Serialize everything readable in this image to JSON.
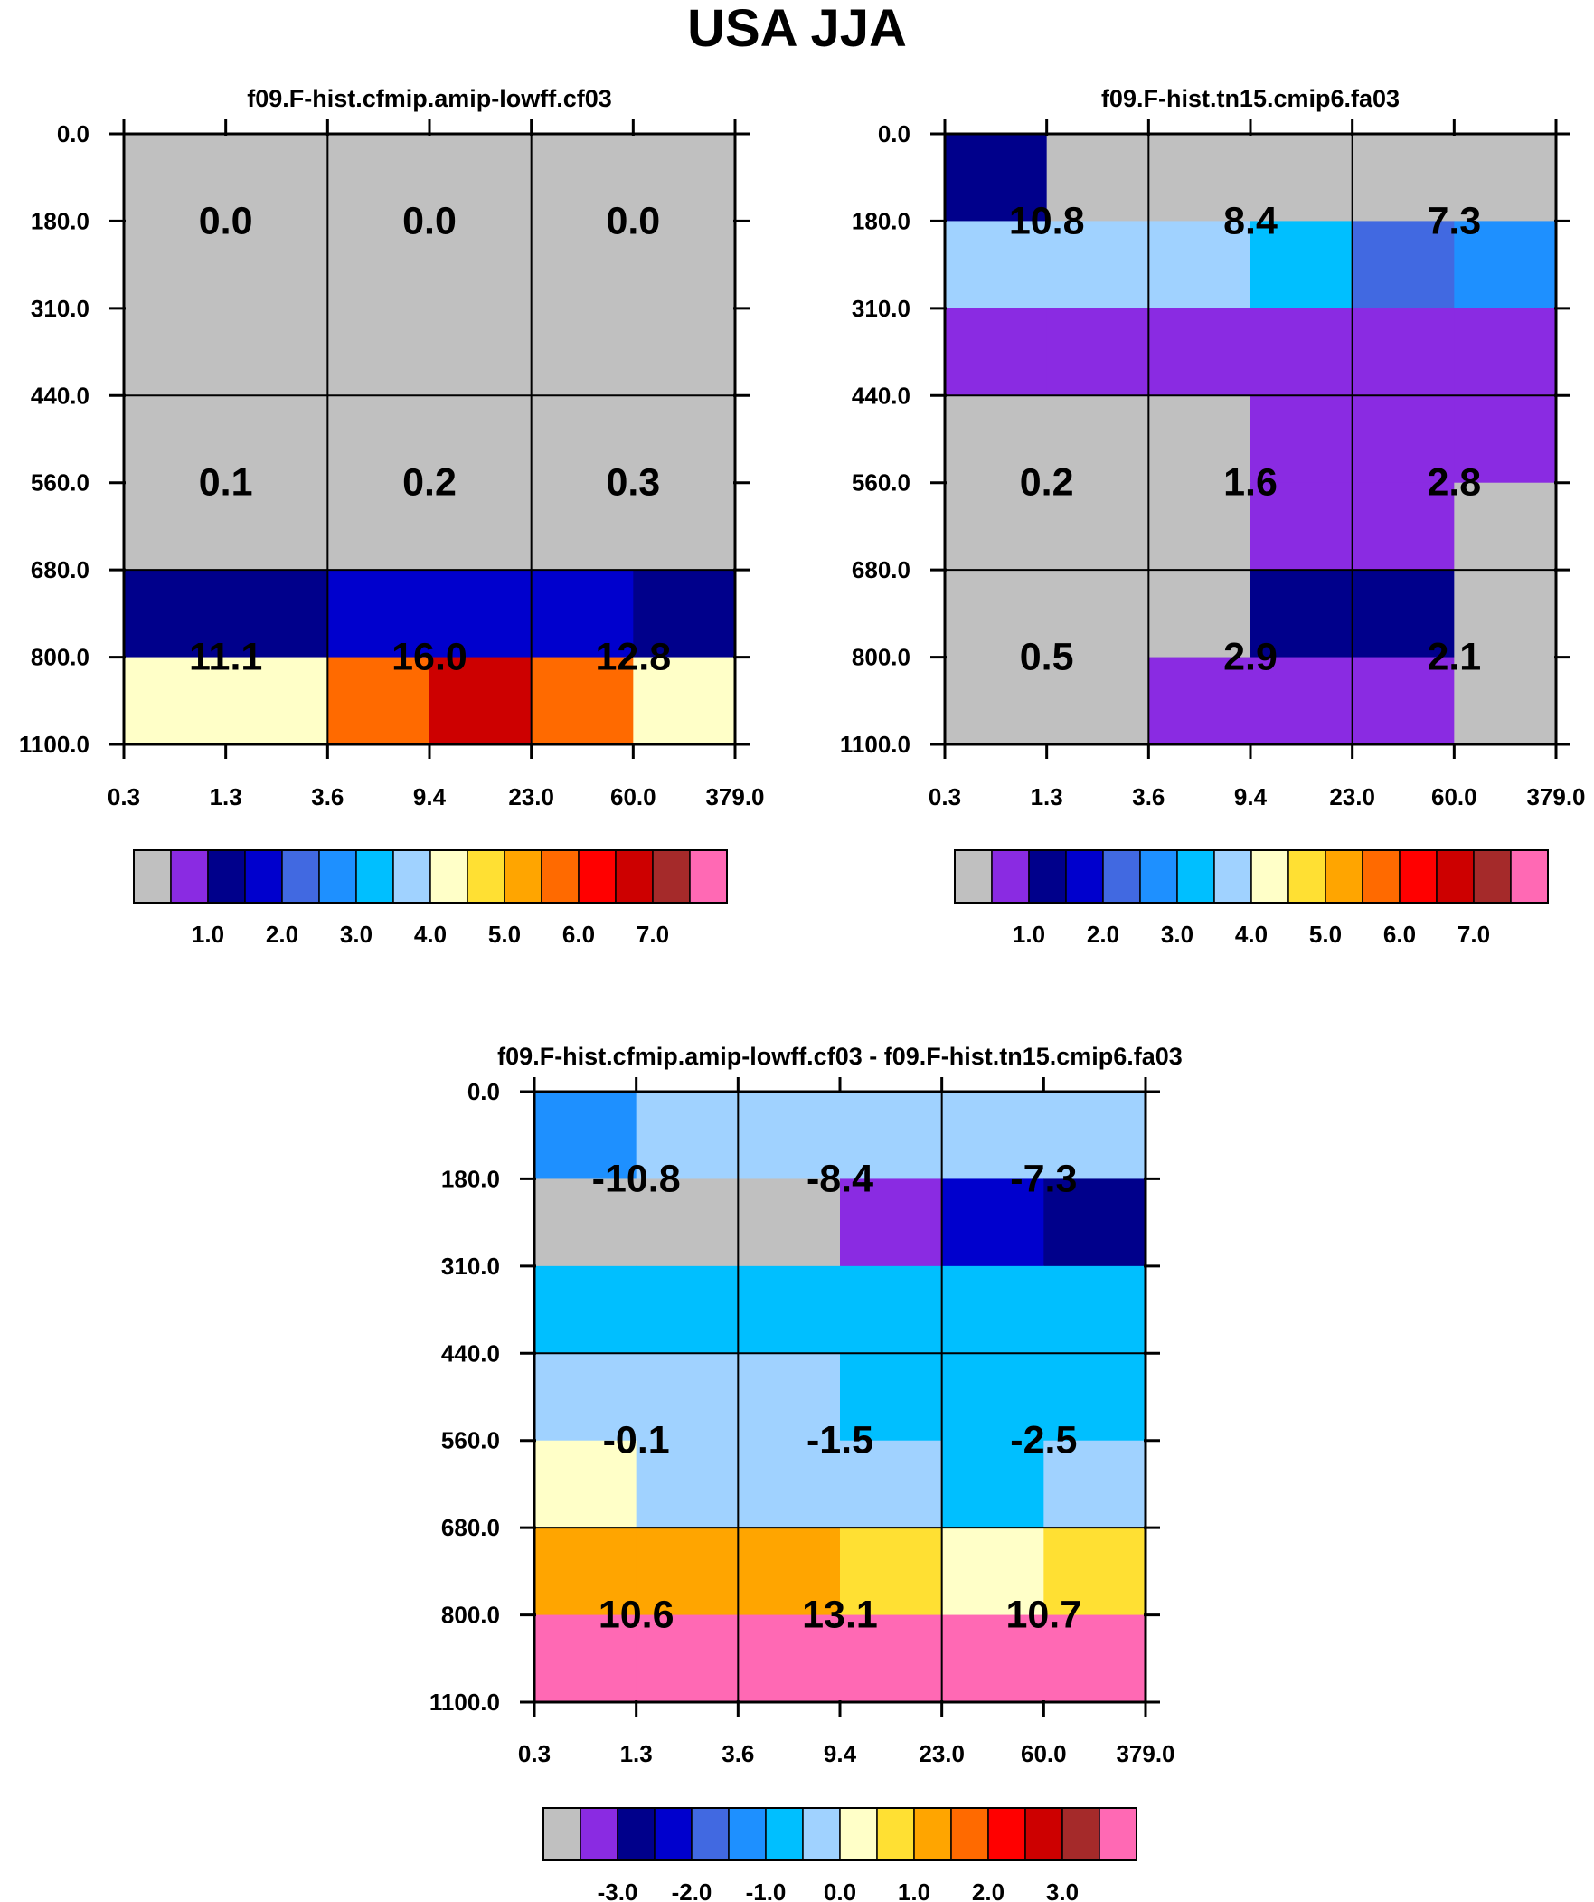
{
  "title": "USA JJA",
  "colors": {
    "c0": "#c0c0c0",
    "c1": "#8a2be2",
    "c2": "#00008b",
    "c3": "#0000cd",
    "c4": "#4169e1",
    "c5": "#1e90ff",
    "c6": "#00bfff",
    "c7": "#a0d2ff",
    "c8": "#ffffc8",
    "c9": "#ffe033",
    "c10": "#ffa500",
    "c11": "#ff6a00",
    "c12": "#ff0000",
    "c13": "#cd0000",
    "c14": "#a52a2a",
    "c15": "#ff69b4"
  },
  "chart_data": [
    {
      "type": "heatmap",
      "title": "f09.F-hist.cfmip.amip-lowff.cf03",
      "x_ticks": [
        "0.3",
        "1.3",
        "3.6",
        "9.4",
        "23.0",
        "60.0",
        "379.0"
      ],
      "y_ticks": [
        "0.0",
        "180.0",
        "310.0",
        "440.0",
        "560.0",
        "680.0",
        "800.0",
        "1100.0"
      ],
      "cells": [
        [
          "c0",
          "c0",
          "c0",
          "c0",
          "c0",
          "c0"
        ],
        [
          "c0",
          "c0",
          "c0",
          "c0",
          "c0",
          "c0"
        ],
        [
          "c0",
          "c0",
          "c0",
          "c0",
          "c0",
          "c0"
        ],
        [
          "c0",
          "c0",
          "c0",
          "c0",
          "c0",
          "c0"
        ],
        [
          "c0",
          "c0",
          "c0",
          "c0",
          "c0",
          "c0"
        ],
        [
          "c2",
          "c2",
          "c3",
          "c3",
          "c3",
          "c2"
        ],
        [
          "c8",
          "c8",
          "c11",
          "c13",
          "c11",
          "c8"
        ]
      ],
      "annotations": [
        {
          "row": 1,
          "col": 0,
          "text": "0.0"
        },
        {
          "row": 1,
          "col": 1,
          "text": "0.0"
        },
        {
          "row": 1,
          "col": 2,
          "text": "0.0"
        },
        {
          "row": 4,
          "col": 0,
          "text": "0.1"
        },
        {
          "row": 4,
          "col": 1,
          "text": "0.2"
        },
        {
          "row": 4,
          "col": 2,
          "text": "0.3"
        },
        {
          "row": 6,
          "col": 0,
          "text": "11.1"
        },
        {
          "row": 6,
          "col": 1,
          "text": "16.0"
        },
        {
          "row": 6,
          "col": 2,
          "text": "12.8"
        }
      ],
      "colorbar": {
        "colors": [
          "c0",
          "c1",
          "c2",
          "c3",
          "c4",
          "c5",
          "c6",
          "c7",
          "c8",
          "c9",
          "c10",
          "c11",
          "c12",
          "c13",
          "c14",
          "c15"
        ],
        "labels": [
          "1.0",
          "2.0",
          "3.0",
          "4.0",
          "5.0",
          "6.0",
          "7.0"
        ],
        "label_start_boundary": 2
      }
    },
    {
      "type": "heatmap",
      "title": "f09.F-hist.tn15.cmip6.fa03",
      "x_ticks": [
        "0.3",
        "1.3",
        "3.6",
        "9.4",
        "23.0",
        "60.0",
        "379.0"
      ],
      "y_ticks": [
        "0.0",
        "180.0",
        "310.0",
        "440.0",
        "560.0",
        "680.0",
        "800.0",
        "1100.0"
      ],
      "cells": [
        [
          "c2",
          "c0",
          "c0",
          "c0",
          "c0",
          "c0"
        ],
        [
          "c7",
          "c7",
          "c7",
          "c6",
          "c4",
          "c5"
        ],
        [
          "c1",
          "c1",
          "c1",
          "c1",
          "c1",
          "c1"
        ],
        [
          "c0",
          "c0",
          "c0",
          "c1",
          "c1",
          "c1"
        ],
        [
          "c0",
          "c0",
          "c0",
          "c1",
          "c1",
          "c0"
        ],
        [
          "c0",
          "c0",
          "c0",
          "c2",
          "c2",
          "c0"
        ],
        [
          "c0",
          "c0",
          "c1",
          "c1",
          "c1",
          "c0"
        ]
      ],
      "annotations": [
        {
          "row": 1,
          "col": 0,
          "text": "10.8"
        },
        {
          "row": 1,
          "col": 1,
          "text": "8.4"
        },
        {
          "row": 1,
          "col": 2,
          "text": "7.3"
        },
        {
          "row": 4,
          "col": 0,
          "text": "0.2"
        },
        {
          "row": 4,
          "col": 1,
          "text": "1.6"
        },
        {
          "row": 4,
          "col": 2,
          "text": "2.8"
        },
        {
          "row": 6,
          "col": 0,
          "text": "0.5"
        },
        {
          "row": 6,
          "col": 1,
          "text": "2.9"
        },
        {
          "row": 6,
          "col": 2,
          "text": "2.1"
        }
      ],
      "colorbar": {
        "colors": [
          "c0",
          "c1",
          "c2",
          "c3",
          "c4",
          "c5",
          "c6",
          "c7",
          "c8",
          "c9",
          "c10",
          "c11",
          "c12",
          "c13",
          "c14",
          "c15"
        ],
        "labels": [
          "1.0",
          "2.0",
          "3.0",
          "4.0",
          "5.0",
          "6.0",
          "7.0"
        ],
        "label_start_boundary": 2
      }
    },
    {
      "type": "heatmap",
      "title": "f09.F-hist.cfmip.amip-lowff.cf03 - f09.F-hist.tn15.cmip6.fa03",
      "x_ticks": [
        "0.3",
        "1.3",
        "3.6",
        "9.4",
        "23.0",
        "60.0",
        "379.0"
      ],
      "y_ticks": [
        "0.0",
        "180.0",
        "310.0",
        "440.0",
        "560.0",
        "680.0",
        "800.0",
        "1100.0"
      ],
      "cells": [
        [
          "c5",
          "c7",
          "c7",
          "c7",
          "c7",
          "c7"
        ],
        [
          "c0",
          "c0",
          "c0",
          "c1",
          "c3",
          "c2"
        ],
        [
          "c6",
          "c6",
          "c6",
          "c6",
          "c6",
          "c6"
        ],
        [
          "c7",
          "c7",
          "c7",
          "c6",
          "c6",
          "c6"
        ],
        [
          "c8",
          "c7",
          "c7",
          "c7",
          "c6",
          "c7"
        ],
        [
          "c10",
          "c10",
          "c10",
          "c9",
          "c8",
          "c9"
        ],
        [
          "c15",
          "c15",
          "c15",
          "c15",
          "c15",
          "c15"
        ]
      ],
      "annotations": [
        {
          "row": 1,
          "col": 0,
          "text": "-10.8"
        },
        {
          "row": 1,
          "col": 1,
          "text": "-8.4"
        },
        {
          "row": 1,
          "col": 2,
          "text": "-7.3"
        },
        {
          "row": 4,
          "col": 0,
          "text": "-0.1"
        },
        {
          "row": 4,
          "col": 1,
          "text": "-1.5"
        },
        {
          "row": 4,
          "col": 2,
          "text": "-2.5"
        },
        {
          "row": 6,
          "col": 0,
          "text": "10.6"
        },
        {
          "row": 6,
          "col": 1,
          "text": "13.1"
        },
        {
          "row": 6,
          "col": 2,
          "text": "10.7"
        }
      ],
      "colorbar": {
        "colors": [
          "c0",
          "c1",
          "c2",
          "c3",
          "c4",
          "c5",
          "c6",
          "c7",
          "c8",
          "c9",
          "c10",
          "c11",
          "c12",
          "c13",
          "c14",
          "c15"
        ],
        "labels": [
          "-3.0",
          "-2.0",
          "-1.0",
          "0.0",
          "1.0",
          "2.0",
          "3.0"
        ],
        "label_start_boundary": 2
      }
    }
  ]
}
